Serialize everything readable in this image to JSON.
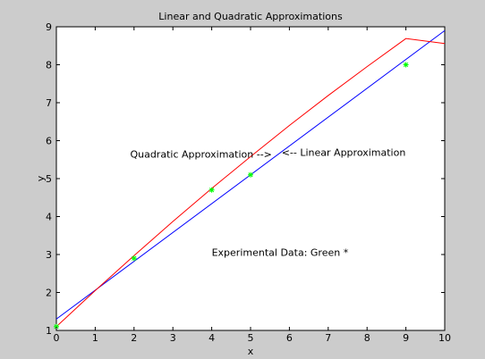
{
  "chart_data": {
    "type": "line",
    "title": "Linear and Quadratic Approximations",
    "xlabel": "x",
    "ylabel": "y",
    "xlim": [
      0,
      10
    ],
    "ylim": [
      1,
      9
    ],
    "xticks": [
      0,
      1,
      2,
      3,
      4,
      5,
      6,
      7,
      8,
      9,
      10
    ],
    "yticks": [
      1,
      2,
      3,
      4,
      5,
      6,
      7,
      8,
      9
    ],
    "grid": false,
    "series": [
      {
        "kind": "line",
        "color": "#0000ff",
        "x": [
          0,
          10
        ],
        "y": [
          1.3,
          8.9
        ]
      },
      {
        "kind": "line",
        "color": "#ff0000",
        "x": [
          0,
          1,
          2,
          3,
          4,
          5,
          6,
          7,
          8,
          9,
          10
        ],
        "y": [
          1.1,
          2.05,
          2.97,
          3.87,
          4.74,
          5.58,
          6.4,
          7.19,
          7.95,
          8.69,
          8.56
        ]
      },
      {
        "kind": "scatter",
        "color": "#00ff00",
        "marker": "asterisk",
        "x": [
          0,
          2,
          4,
          5,
          9
        ],
        "y": [
          1.1,
          2.9,
          4.7,
          5.1,
          8.0
        ]
      }
    ],
    "annotations": [
      {
        "text": "Quadratic Approximation -->",
        "x": 1.9,
        "y": 5.55
      },
      {
        "text": "<-- Linear Approximation",
        "x": 5.8,
        "y": 5.6
      },
      {
        "text": "Experimental Data: Green *",
        "x": 4.0,
        "y": 2.97
      }
    ]
  }
}
